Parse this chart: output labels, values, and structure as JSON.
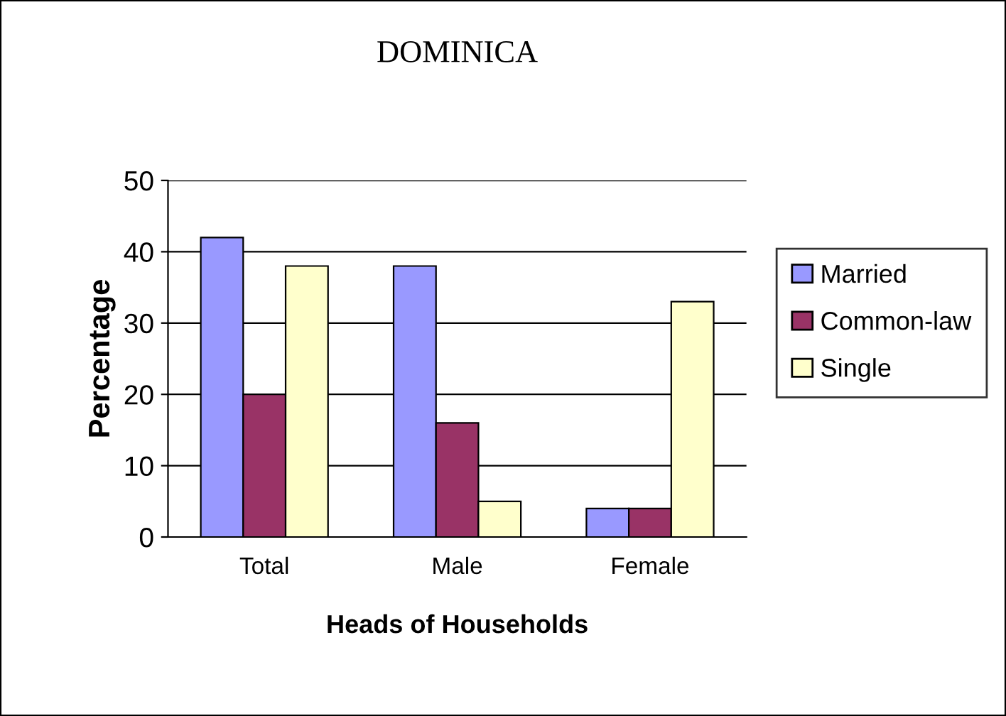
{
  "chart_data": {
    "type": "bar",
    "title": "DOMINICA",
    "xlabel": "Heads of Households",
    "ylabel": "Percentage",
    "categories": [
      "Total",
      "Male",
      "Female"
    ],
    "series": [
      {
        "name": "Married",
        "color": "#9999ff",
        "values": [
          42,
          38,
          4
        ]
      },
      {
        "name": "Common-law",
        "color": "#993366",
        "values": [
          20,
          16,
          4
        ]
      },
      {
        "name": "Single",
        "color": "#ffffcc",
        "values": [
          38,
          5,
          33
        ]
      }
    ],
    "ylim": [
      0,
      50
    ],
    "yticks": [
      0,
      10,
      20,
      30,
      40,
      50
    ],
    "grid": "y",
    "legend": "right"
  }
}
